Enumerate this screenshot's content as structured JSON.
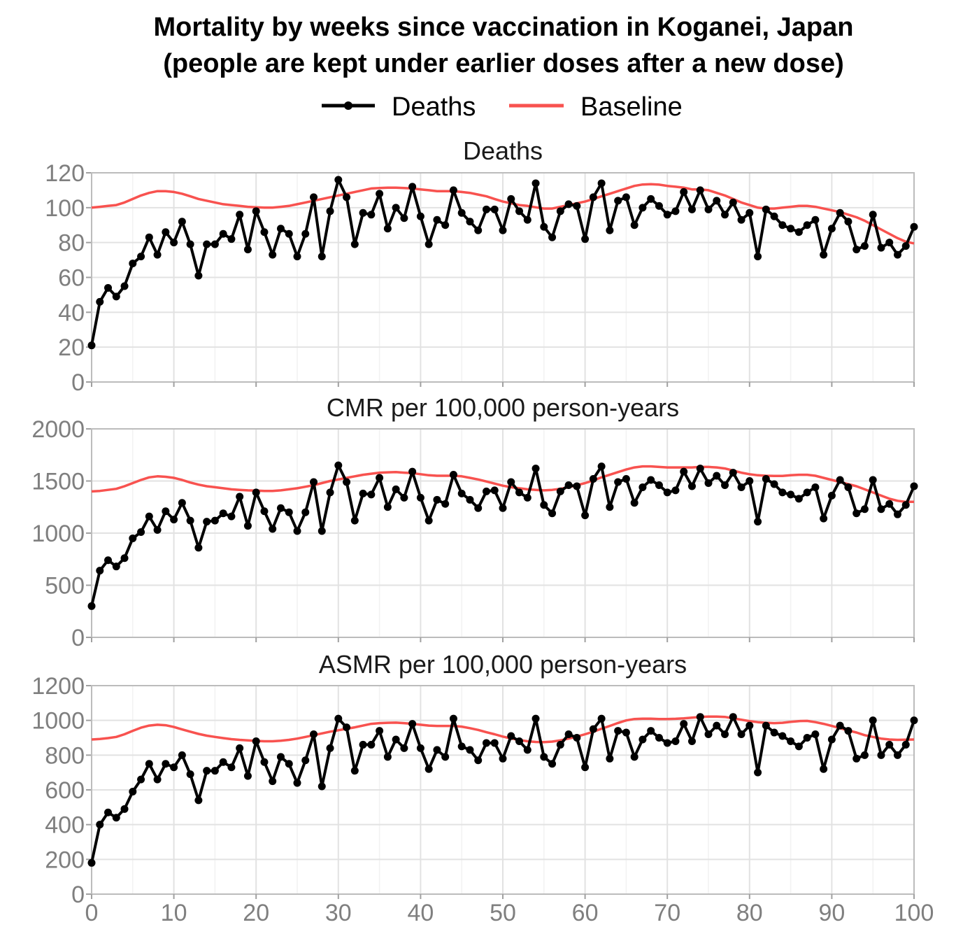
{
  "title_line1": "Mortality by weeks since vaccination in Koganei, Japan",
  "title_line2": "(people are kept under earlier doses after a new dose)",
  "legend": [
    {
      "name": "Deaths",
      "color": "#000000"
    },
    {
      "name": "Baseline",
      "color": "#f8524f"
    }
  ],
  "chart_data": {
    "type": "line",
    "title": "Mortality by weeks since vaccination in Koganei, Japan (people are kept under earlier doses after a new dose)",
    "xlabel": "",
    "ylabel": "",
    "xlim": [
      0,
      100
    ],
    "x_ticks": [
      "0",
      "10",
      "20",
      "30",
      "40",
      "50",
      "60",
      "70",
      "80",
      "90",
      "100"
    ],
    "x": [
      0,
      1,
      2,
      3,
      4,
      5,
      6,
      7,
      8,
      9,
      10,
      11,
      12,
      13,
      14,
      15,
      16,
      17,
      18,
      19,
      20,
      21,
      22,
      23,
      24,
      25,
      26,
      27,
      28,
      29,
      30,
      31,
      32,
      33,
      34,
      35,
      36,
      37,
      38,
      39,
      40,
      41,
      42,
      43,
      44,
      45,
      46,
      47,
      48,
      49,
      50,
      51,
      52,
      53,
      54,
      55,
      56,
      57,
      58,
      59,
      60,
      61,
      62,
      63,
      64,
      65,
      66,
      67,
      68,
      69,
      70,
      71,
      72,
      73,
      74,
      75,
      76,
      77,
      78,
      79,
      80,
      81,
      82,
      83,
      84,
      85,
      86,
      87,
      88,
      89,
      90,
      91,
      92,
      93,
      94,
      95,
      96,
      97,
      98,
      99,
      100
    ],
    "grid": true,
    "legend_position": "top",
    "panels": [
      {
        "title": "Deaths",
        "ylim": [
          0,
          120
        ],
        "y_ticks": [
          "0",
          "20",
          "40",
          "60",
          "80",
          "100",
          "120"
        ],
        "series": [
          {
            "name": "Deaths",
            "color": "#000000",
            "values": [
              21,
              46,
              54,
              49,
              55,
              68,
              72,
              83,
              73,
              86,
              80,
              92,
              79,
              61,
              79,
              79,
              85,
              82,
              96,
              76,
              98,
              86,
              73,
              88,
              85,
              72,
              85,
              106,
              72,
              98,
              116,
              106,
              79,
              97,
              96,
              108,
              88,
              100,
              94,
              112,
              95,
              79,
              93,
              90,
              110,
              97,
              92,
              87,
              99,
              99,
              87,
              105,
              98,
              93,
              114,
              89,
              83,
              98,
              102,
              101,
              82,
              106,
              114,
              87,
              104,
              106,
              90,
              100,
              105,
              101,
              96,
              98,
              109,
              99,
              110,
              99,
              104,
              96,
              103,
              93,
              97,
              72,
              99,
              95,
              90,
              88,
              86,
              90,
              93,
              73,
              88,
              97,
              92,
              76,
              78,
              96,
              77,
              80,
              73,
              78,
              89
            ]
          },
          {
            "name": "Baseline",
            "color": "#f8524f",
            "values": [
              100,
              100.5,
              101,
              101.5,
              103,
              105,
              107,
              108.5,
              109.5,
              109.5,
              109,
              108,
              106.5,
              105,
              104,
              103,
              102,
              101.5,
              101,
              100.5,
              100.2,
              100,
              100,
              100.5,
              101,
              102,
              103,
              104,
              105,
              106,
              107,
              108,
              109,
              110,
              111,
              111.3,
              111.5,
              111.5,
              111.3,
              111,
              110.5,
              110,
              109.5,
              109.5,
              109.5,
              109,
              108.5,
              107.5,
              106.5,
              105,
              103.5,
              102.5,
              101.5,
              101,
              100.2,
              99.5,
              99.5,
              100.5,
              101.5,
              102.5,
              103.5,
              105,
              106.5,
              108,
              109.5,
              111,
              112.5,
              113.3,
              113.5,
              113.2,
              112.5,
              112,
              111.5,
              110.5,
              110.5,
              110,
              108.5,
              107,
              105,
              103,
              101.5,
              100,
              99.5,
              99.5,
              100,
              100.5,
              101,
              101,
              100.5,
              99.5,
              98.5,
              97.5,
              96,
              94.5,
              92.5,
              90,
              87.5,
              85,
              82.5,
              80.5,
              79.5
            ]
          }
        ]
      },
      {
        "title": "CMR per 100,000 person-years",
        "ylim": [
          0,
          2000
        ],
        "y_ticks": [
          "0",
          "500",
          "1000",
          "1500",
          "2000"
        ],
        "series": [
          {
            "name": "Deaths",
            "color": "#000000",
            "values": [
              300,
              640,
              740,
              680,
              760,
              950,
              1010,
              1160,
              1030,
              1210,
              1130,
              1290,
              1120,
              860,
              1110,
              1120,
              1190,
              1160,
              1350,
              1070,
              1390,
              1210,
              1040,
              1240,
              1200,
              1020,
              1200,
              1490,
              1020,
              1390,
              1650,
              1490,
              1120,
              1380,
              1370,
              1530,
              1250,
              1420,
              1340,
              1590,
              1340,
              1120,
              1320,
              1280,
              1560,
              1380,
              1320,
              1240,
              1400,
              1410,
              1240,
              1490,
              1390,
              1340,
              1620,
              1270,
              1190,
              1400,
              1460,
              1450,
              1170,
              1520,
              1640,
              1250,
              1490,
              1520,
              1290,
              1440,
              1510,
              1460,
              1390,
              1410,
              1590,
              1450,
              1620,
              1480,
              1550,
              1460,
              1580,
              1440,
              1500,
              1110,
              1520,
              1470,
              1390,
              1370,
              1330,
              1390,
              1440,
              1140,
              1360,
              1510,
              1440,
              1190,
              1230,
              1510,
              1230,
              1280,
              1180,
              1270,
              1450
            ]
          },
          {
            "name": "Baseline",
            "color": "#f8524f",
            "values": [
              1400,
              1405,
              1415,
              1425,
              1450,
              1480,
              1510,
              1535,
              1545,
              1540,
              1530,
              1510,
              1485,
              1465,
              1450,
              1440,
              1430,
              1420,
              1415,
              1410,
              1408,
              1405,
              1405,
              1410,
              1420,
              1430,
              1445,
              1460,
              1480,
              1500,
              1515,
              1530,
              1545,
              1560,
              1570,
              1580,
              1583,
              1585,
              1580,
              1575,
              1565,
              1555,
              1550,
              1550,
              1550,
              1545,
              1530,
              1515,
              1495,
              1475,
              1455,
              1440,
              1430,
              1420,
              1415,
              1410,
              1415,
              1425,
              1440,
              1460,
              1480,
              1505,
              1535,
              1560,
              1585,
              1610,
              1630,
              1640,
              1640,
              1635,
              1630,
              1630,
              1630,
              1630,
              1635,
              1635,
              1630,
              1620,
              1600,
              1580,
              1565,
              1555,
              1550,
              1548,
              1548,
              1555,
              1560,
              1560,
              1550,
              1530,
              1510,
              1490,
              1470,
              1450,
              1420,
              1390,
              1360,
              1330,
              1310,
              1300,
              1300
            ]
          }
        ]
      },
      {
        "title": "ASMR per 100,000 person-years",
        "ylim": [
          0,
          1200
        ],
        "y_ticks": [
          "0",
          "200",
          "400",
          "600",
          "800",
          "1000",
          "1200"
        ],
        "series": [
          {
            "name": "Deaths",
            "color": "#000000",
            "values": [
              180,
              400,
              470,
              440,
              490,
              590,
              660,
              750,
              660,
              750,
              730,
              800,
              690,
              540,
              710,
              710,
              760,
              730,
              840,
              680,
              880,
              760,
              650,
              790,
              750,
              640,
              770,
              920,
              620,
              840,
              1010,
              960,
              710,
              860,
              860,
              940,
              790,
              890,
              840,
              980,
              840,
              720,
              830,
              790,
              1010,
              850,
              830,
              770,
              870,
              870,
              780,
              910,
              880,
              830,
              1010,
              790,
              750,
              860,
              920,
              900,
              730,
              950,
              1010,
              780,
              940,
              930,
              790,
              890,
              940,
              900,
              870,
              880,
              980,
              880,
              1020,
              920,
              970,
              920,
              1020,
              920,
              970,
              700,
              970,
              930,
              910,
              880,
              850,
              900,
              920,
              720,
              890,
              970,
              940,
              780,
              800,
              1000,
              800,
              860,
              800,
              860,
              1000
            ]
          },
          {
            "name": "Baseline",
            "color": "#f8524f",
            "values": [
              890,
              893,
              898,
              905,
              920,
              940,
              958,
              970,
              975,
              972,
              962,
              948,
              935,
              922,
              912,
              905,
              898,
              892,
              888,
              885,
              882,
              880,
              880,
              883,
              888,
              895,
              905,
              915,
              925,
              935,
              943,
              952,
              960,
              970,
              980,
              984,
              986,
              987,
              984,
              980,
              975,
              970,
              968,
              968,
              968,
              964,
              955,
              945,
              932,
              920,
              907,
              896,
              887,
              880,
              876,
              875,
              878,
              885,
              895,
              907,
              920,
              935,
              952,
              968,
              985,
              1000,
              1008,
              1010,
              1010,
              1008,
              1008,
              1009,
              1012,
              1016,
              1020,
              1022,
              1022,
              1020,
              1012,
              1004,
              996,
              990,
              986,
              984,
              986,
              992,
              996,
              997,
              990,
              980,
              968,
              955,
              942,
              930,
              915,
              905,
              895,
              890,
              888,
              889,
              890
            ]
          }
        ]
      }
    ]
  }
}
